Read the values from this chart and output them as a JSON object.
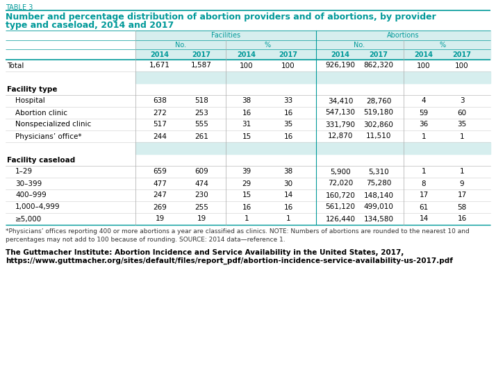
{
  "table_label": "TABLE 3",
  "title_line1": "Number and percentage distribution of abortion providers and of abortions, by provider",
  "title_line2": "type and caseload, 2014 and 2017",
  "teal_color": "#009999",
  "light_teal_bg": "#d6eeee",
  "facilities_label": "Facilities",
  "abortions_label": "Abortions",
  "year_labels": [
    "2014",
    "2017",
    "2014",
    "2017",
    "2014",
    "2017",
    "2014",
    "2017"
  ],
  "rows": [
    {
      "label": "Total",
      "values": [
        "1,671",
        "1,587",
        "100",
        "100",
        "926,190",
        "862,320",
        "100",
        "100"
      ],
      "is_total": true
    },
    {
      "label": "",
      "values": [
        "",
        "",
        "",
        "",
        "",
        "",
        "",
        ""
      ],
      "is_spacer": true
    },
    {
      "label": "Facility type",
      "values": [
        "",
        "",
        "",
        "",
        "",
        "",
        "",
        ""
      ],
      "is_section": true
    },
    {
      "label": "Hospital",
      "values": [
        "638",
        "518",
        "38",
        "33",
        "34,410",
        "28,760",
        "4",
        "3"
      ],
      "indent": true
    },
    {
      "label": "Abortion clinic",
      "values": [
        "272",
        "253",
        "16",
        "16",
        "547,130",
        "519,180",
        "59",
        "60"
      ],
      "indent": true
    },
    {
      "label": "Nonspecialized clinic",
      "values": [
        "517",
        "555",
        "31",
        "35",
        "331,790",
        "302,860",
        "36",
        "35"
      ],
      "indent": true
    },
    {
      "label": "Physicians’ office*",
      "values": [
        "244",
        "261",
        "15",
        "16",
        "12,870",
        "11,510",
        "1",
        "1"
      ],
      "indent": true
    },
    {
      "label": "",
      "values": [
        "",
        "",
        "",
        "",
        "",
        "",
        "",
        ""
      ],
      "is_spacer": true
    },
    {
      "label": "Facility caseload",
      "values": [
        "",
        "",
        "",
        "",
        "",
        "",
        "",
        ""
      ],
      "is_section": true
    },
    {
      "label": "1–29",
      "values": [
        "659",
        "609",
        "39",
        "38",
        "5,900",
        "5,310",
        "1",
        "1"
      ],
      "indent": true
    },
    {
      "label": "30–399",
      "values": [
        "477",
        "474",
        "29",
        "30",
        "72,020",
        "75,280",
        "8",
        "9"
      ],
      "indent": true
    },
    {
      "label": "400–999",
      "values": [
        "247",
        "230",
        "15",
        "14",
        "160,720",
        "148,140",
        "17",
        "17"
      ],
      "indent": true
    },
    {
      "label": "1,000–4,999",
      "values": [
        "269",
        "255",
        "16",
        "16",
        "561,120",
        "499,010",
        "61",
        "58"
      ],
      "indent": true
    },
    {
      "label": "≥5,000",
      "values": [
        "19",
        "19",
        "1",
        "1",
        "126,440",
        "134,580",
        "14",
        "16"
      ],
      "indent": true
    }
  ],
  "footnote": "*Physicians’ offices reporting 400 or more abortions a year are classified as clinics. NOTE: Numbers of abortions are rounded to the nearest 10 and\npercentages may not add to 100 because of rounding. SOURCE: 2014 data—reference 1.",
  "citation_line1": "The Guttmacher Institute: Abortion Incidence and Service Availability in the United States, 2017,",
  "citation_line2": "https://www.guttmacher.org/sites/default/files/report_pdf/abortion-incidence-service-availability-us-2017.pdf",
  "bg_color": "#ffffff"
}
